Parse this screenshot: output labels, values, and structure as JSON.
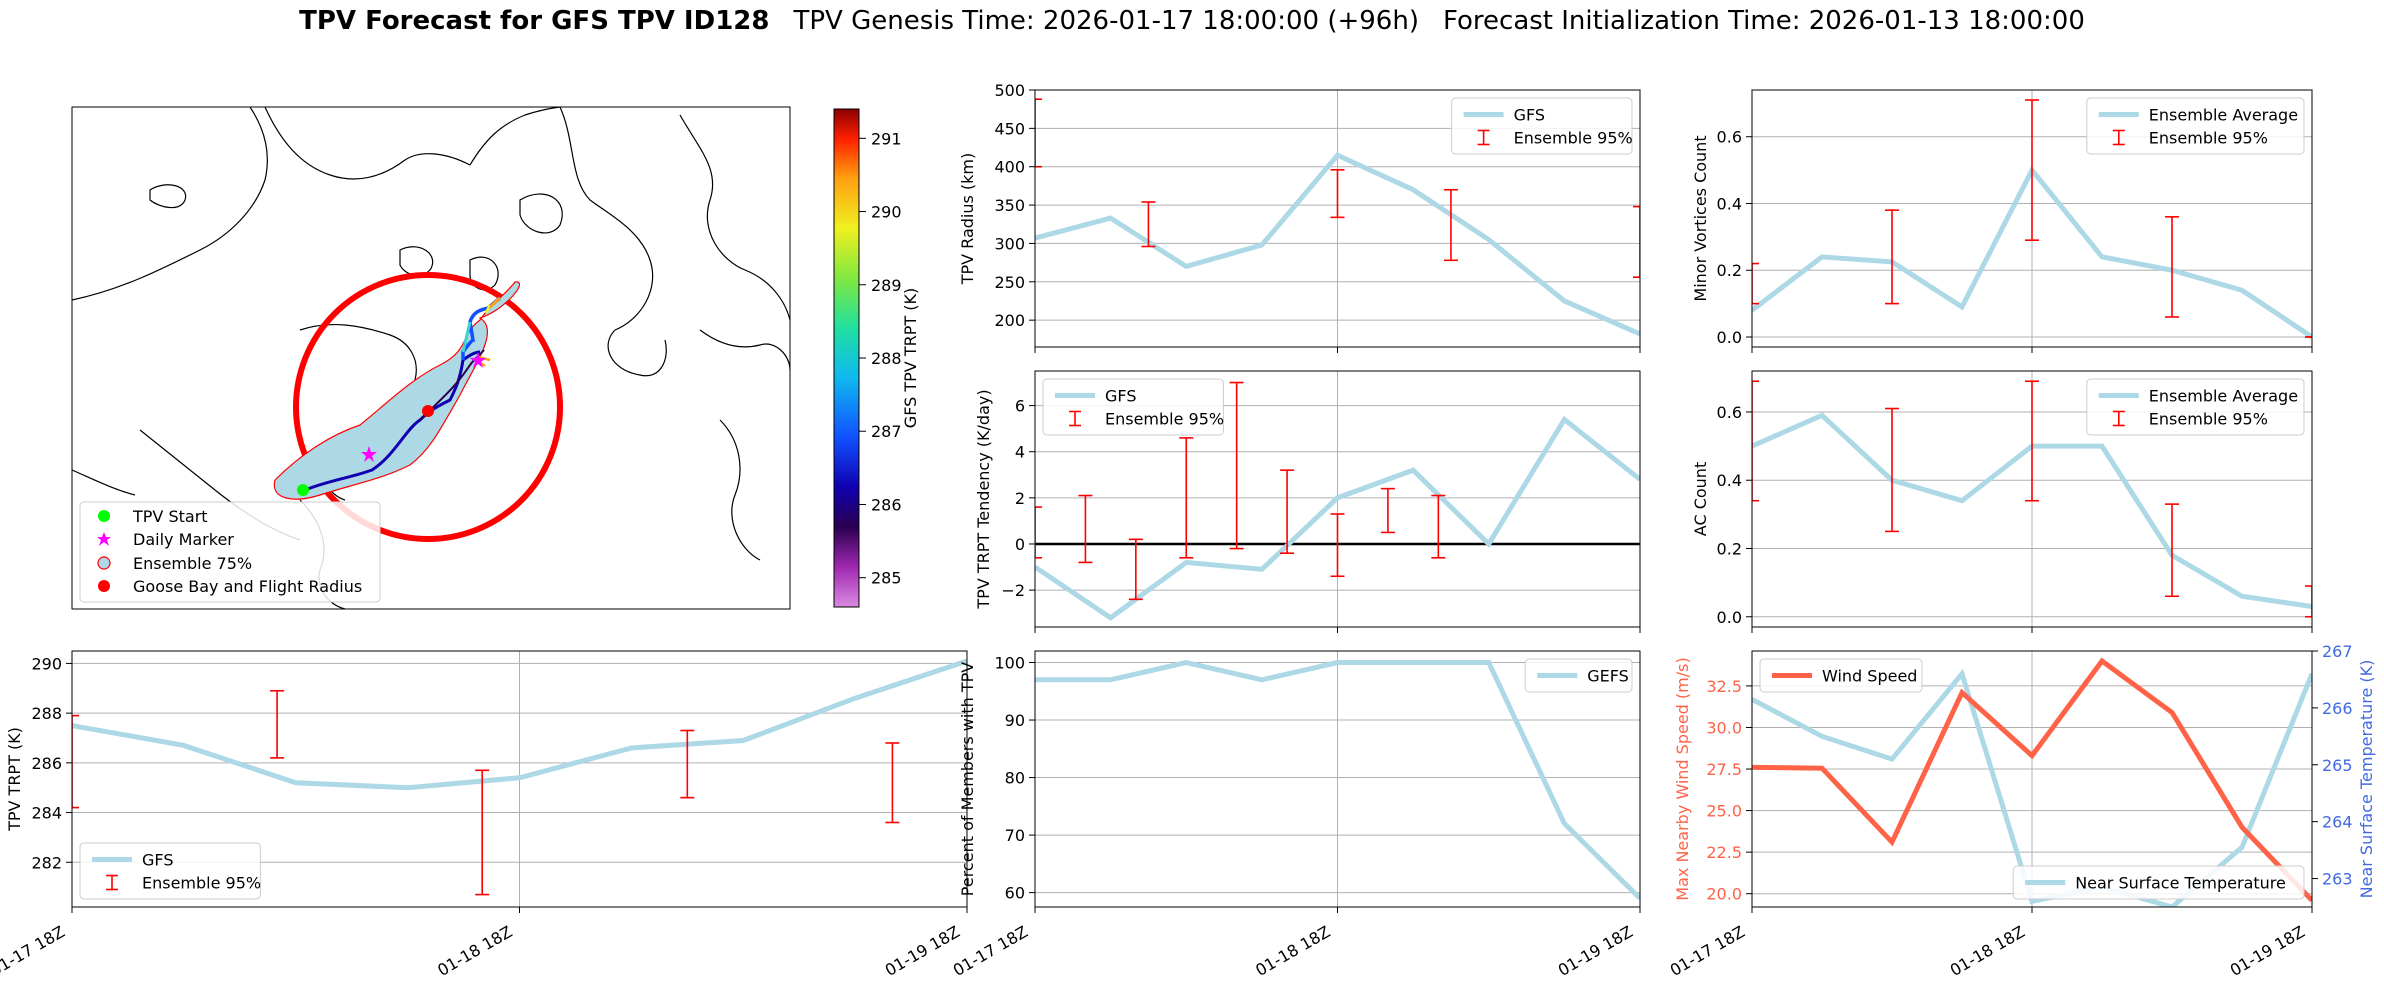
{
  "figure": {
    "title_bold": "TPV Forecast for GFS TPV ID128",
    "title_genesis": "TPV Genesis Time: 2026-01-17 18:00:00 (+96h)",
    "title_init": "Forecast Initialization Time: 2026-01-13 18:00:00",
    "colors": {
      "gfs_line": "#add8e6",
      "ensemble_bar": "#ff0000",
      "wind": "#ff6347",
      "temp_axis": "#4169e1"
    },
    "shared_x_ticks": [
      "01-17 18Z",
      "01-18 18Z",
      "01-19 18Z"
    ]
  },
  "chart_data": [
    {
      "id": "map",
      "type": "map",
      "colorbar": {
        "label": "GFS TPV TRPT (K)",
        "range": [
          284.6,
          291.4
        ],
        "ticks": [
          285,
          286,
          287,
          288,
          289,
          290,
          291
        ]
      },
      "legend": {
        "position": "bottom-left",
        "entries": [
          "TPV Start",
          "Daily Marker",
          "Ensemble 75%",
          "Goose Bay and Flight Radius"
        ]
      }
    },
    {
      "id": "radius",
      "type": "line",
      "ylabel": "TPV Radius (km)",
      "ylim": [
        165,
        500
      ],
      "yticks": [
        200,
        250,
        300,
        350,
        400,
        450,
        500
      ],
      "legend": {
        "position": "top-right",
        "entries": [
          "GFS",
          "Ensemble 95%"
        ]
      },
      "x": [
        0,
        6,
        12,
        18,
        24,
        30,
        36,
        42,
        48
      ],
      "line": [
        307,
        333,
        270,
        298,
        415,
        370,
        305,
        225,
        182
      ],
      "errorbars": [
        {
          "x": 0,
          "low": 400,
          "high": 488
        },
        {
          "x": 9,
          "low": 296,
          "high": 354
        },
        {
          "x": 24,
          "low": 334,
          "high": 396
        },
        {
          "x": 33,
          "low": 278,
          "high": 370
        },
        {
          "x": 48,
          "low": 256,
          "high": 348
        }
      ]
    },
    {
      "id": "minor",
      "type": "line",
      "ylabel": "Minor Vortices Count",
      "ylim": [
        -0.03,
        0.74
      ],
      "yticks": [
        0.0,
        0.2,
        0.4,
        0.6
      ],
      "legend": {
        "position": "top-right",
        "entries": [
          "Ensemble Average",
          "Ensemble 95%"
        ]
      },
      "x": [
        0,
        6,
        12,
        18,
        24,
        30,
        36,
        42,
        48
      ],
      "line": [
        0.08,
        0.24,
        0.225,
        0.09,
        0.5,
        0.24,
        0.2,
        0.14,
        0.0
      ],
      "errorbars": [
        {
          "x": 0,
          "low": 0.1,
          "high": 0.22
        },
        {
          "x": 12,
          "low": 0.1,
          "high": 0.38
        },
        {
          "x": 24,
          "low": 0.29,
          "high": 0.71
        },
        {
          "x": 36,
          "low": 0.06,
          "high": 0.36
        },
        {
          "x": 48,
          "low": 0.0,
          "high": 0.0
        }
      ]
    },
    {
      "id": "tendency",
      "type": "line",
      "ylabel": "TPV TRPT Tendency (K/day)",
      "ylim": [
        -3.6,
        7.5
      ],
      "yticks": [
        -2,
        0,
        2,
        4,
        6
      ],
      "zero_line": true,
      "legend": {
        "position": "top-left",
        "entries": [
          "GFS",
          "Ensemble 95%"
        ]
      },
      "x": [
        0,
        6,
        12,
        18,
        24,
        30,
        36,
        42,
        48
      ],
      "line": [
        -1.0,
        -3.2,
        -0.8,
        -1.1,
        2.0,
        3.2,
        0.0,
        5.4,
        2.8
      ],
      "errorbars": [
        {
          "x": 0,
          "low": -0.6,
          "high": 1.6
        },
        {
          "x": 4,
          "low": -0.8,
          "high": 2.1
        },
        {
          "x": 8,
          "low": -2.4,
          "high": 0.2
        },
        {
          "x": 12,
          "low": -0.6,
          "high": 4.6
        },
        {
          "x": 16,
          "low": -0.2,
          "high": 7.0
        },
        {
          "x": 20,
          "low": -0.4,
          "high": 3.2
        },
        {
          "x": 24,
          "low": -1.4,
          "high": 1.3
        },
        {
          "x": 28,
          "low": 0.5,
          "high": 2.4
        },
        {
          "x": 32,
          "low": -0.6,
          "high": 2.1
        }
      ]
    },
    {
      "id": "ac",
      "type": "line",
      "ylabel": "AC Count",
      "ylim": [
        -0.03,
        0.72
      ],
      "yticks": [
        0.0,
        0.2,
        0.4,
        0.6
      ],
      "legend": {
        "position": "top-right",
        "entries": [
          "Ensemble Average",
          "Ensemble 95%"
        ]
      },
      "x": [
        0,
        6,
        12,
        18,
        24,
        30,
        36,
        42,
        48
      ],
      "line": [
        0.5,
        0.59,
        0.4,
        0.34,
        0.5,
        0.5,
        0.18,
        0.06,
        0.03
      ],
      "errorbars": [
        {
          "x": 0,
          "low": 0.34,
          "high": 0.69
        },
        {
          "x": 12,
          "low": 0.25,
          "high": 0.61
        },
        {
          "x": 24,
          "low": 0.34,
          "high": 0.69
        },
        {
          "x": 36,
          "low": 0.06,
          "high": 0.33
        },
        {
          "x": 48,
          "low": 0.0,
          "high": 0.09
        }
      ]
    },
    {
      "id": "trpt",
      "type": "line",
      "ylabel": "TPV TRPT (K)",
      "ylim": [
        280.2,
        290.5
      ],
      "yticks": [
        282,
        284,
        286,
        288,
        290
      ],
      "legend": {
        "position": "bottom-left",
        "entries": [
          "GFS",
          "Ensemble 95%"
        ]
      },
      "x": [
        0,
        6,
        12,
        18,
        24,
        30,
        36,
        42,
        48
      ],
      "line": [
        287.5,
        286.7,
        285.2,
        285.0,
        285.4,
        286.6,
        286.9,
        288.6,
        290.1
      ],
      "errorbars": [
        {
          "x": 0,
          "low": 284.2,
          "high": 287.9
        },
        {
          "x": 11,
          "low": 286.2,
          "high": 288.9
        },
        {
          "x": 22,
          "low": 280.7,
          "high": 285.7
        },
        {
          "x": 33,
          "low": 284.6,
          "high": 287.3
        },
        {
          "x": 44,
          "low": 283.6,
          "high": 286.8
        }
      ]
    },
    {
      "id": "members",
      "type": "line",
      "ylabel": "Percent of Members with TPV",
      "ylim": [
        57.5,
        102
      ],
      "yticks": [
        60,
        70,
        80,
        90,
        100
      ],
      "legend": {
        "position": "top-right",
        "entries": [
          "GEFS"
        ]
      },
      "x": [
        0,
        6,
        12,
        18,
        24,
        30,
        36,
        42,
        48
      ],
      "line": [
        97,
        97,
        100,
        97,
        100,
        100,
        100,
        72,
        59
      ]
    },
    {
      "id": "wind_temp",
      "type": "line",
      "ylabel": "Max Nearby Wind Speed (m/s)",
      "ylim": [
        19.2,
        34.6
      ],
      "yticks": [
        20.0,
        22.5,
        25.0,
        27.5,
        30.0,
        32.5
      ],
      "ylabel_right": "Near Surface Temperature (K)",
      "ylim_right": [
        262.5,
        267.0
      ],
      "yticks_right": [
        263,
        264,
        265,
        266,
        267
      ],
      "legend_left": {
        "position": "top-left",
        "entries": [
          "Wind Speed"
        ]
      },
      "legend_right": {
        "position": "bottom-right",
        "entries": [
          "Near Surface Temperature"
        ]
      },
      "x": [
        0,
        6,
        12,
        18,
        24,
        30,
        36,
        42,
        48
      ],
      "wind": [
        27.6,
        27.55,
        23.1,
        32.1,
        28.3,
        34.0,
        30.9,
        24.0,
        19.6
      ],
      "temp": [
        266.15,
        265.5,
        265.1,
        266.6,
        262.6,
        262.85,
        262.5,
        263.55,
        266.6
      ]
    }
  ]
}
